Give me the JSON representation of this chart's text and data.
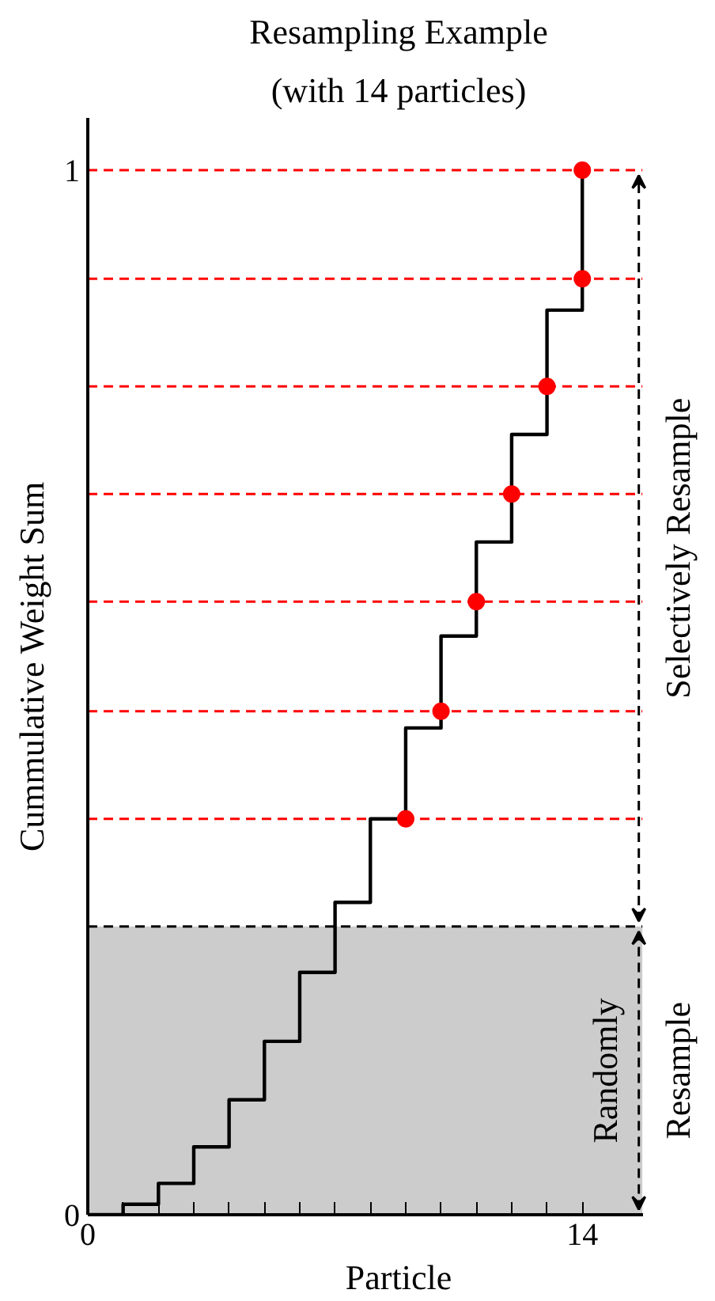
{
  "chart_data": {
    "type": "step",
    "title": "Resampling Example",
    "subtitle": "(with 14 particles)",
    "xlabel": "Particle",
    "ylabel": "Cummulative Weight Sum",
    "xlim": [
      0,
      15.7
    ],
    "ylim": [
      0,
      1.05
    ],
    "xticks": [
      0,
      {
        "value": 1,
        "label": null
      },
      {
        "value": 2,
        "label": null
      },
      {
        "value": 3,
        "label": null
      },
      {
        "value": 4,
        "label": null
      },
      {
        "value": 5,
        "label": null
      },
      {
        "value": 6,
        "label": null
      },
      {
        "value": 7,
        "label": null
      },
      {
        "value": 8,
        "label": null
      },
      {
        "value": 9,
        "label": null
      },
      {
        "value": 10,
        "label": null
      },
      {
        "value": 11,
        "label": null
      },
      {
        "value": 12,
        "label": null
      },
      {
        "value": 13,
        "label": null
      },
      14
    ],
    "yticks": [
      0,
      1
    ],
    "series": [
      {
        "x": [
          0,
          1,
          2,
          3,
          4,
          5,
          6,
          7,
          8,
          9,
          10,
          11,
          12,
          13,
          14
        ],
        "color": "#000000",
        "values": [
          0,
          0.01,
          0.03,
          0.065,
          0.11,
          0.166,
          0.232,
          0.299,
          0.379,
          0.466,
          0.554,
          0.644,
          0.747,
          0.866,
          1.0
        ]
      },
      {
        "type": "scatter",
        "color": "#ff0000",
        "marker": "circle",
        "x": [
          9,
          10,
          11,
          12,
          13,
          14,
          14
        ],
        "values": [
          0.379,
          0.482,
          0.587,
          0.69,
          0.793,
          0.896,
          1.0
        ]
      }
    ],
    "ref_lines": [
      {
        "axis": "y",
        "value": 0.276,
        "color": "#000000",
        "line_style": "dashed"
      },
      {
        "axis": "y",
        "value": 0.379,
        "color": "#ff0000",
        "line_style": "dashed"
      },
      {
        "axis": "y",
        "value": 0.482,
        "color": "#ff0000",
        "line_style": "dashed"
      },
      {
        "axis": "y",
        "value": 0.587,
        "color": "#ff0000",
        "line_style": "dashed"
      },
      {
        "axis": "y",
        "value": 0.69,
        "color": "#ff0000",
        "line_style": "dashed"
      },
      {
        "axis": "y",
        "value": 0.793,
        "color": "#ff0000",
        "line_style": "dashed"
      },
      {
        "axis": "y",
        "value": 0.896,
        "color": "#ff0000",
        "line_style": "dashed"
      },
      {
        "axis": "y",
        "value": 1.0,
        "color": "#ff0000",
        "line_style": "dashed"
      }
    ],
    "bands": [
      {
        "axis": "y",
        "from": 0,
        "to": 0.276,
        "color": "#cccccc"
      }
    ],
    "annotations": [
      "Randomly Resample",
      "Selectively Resample"
    ],
    "grid": false
  }
}
